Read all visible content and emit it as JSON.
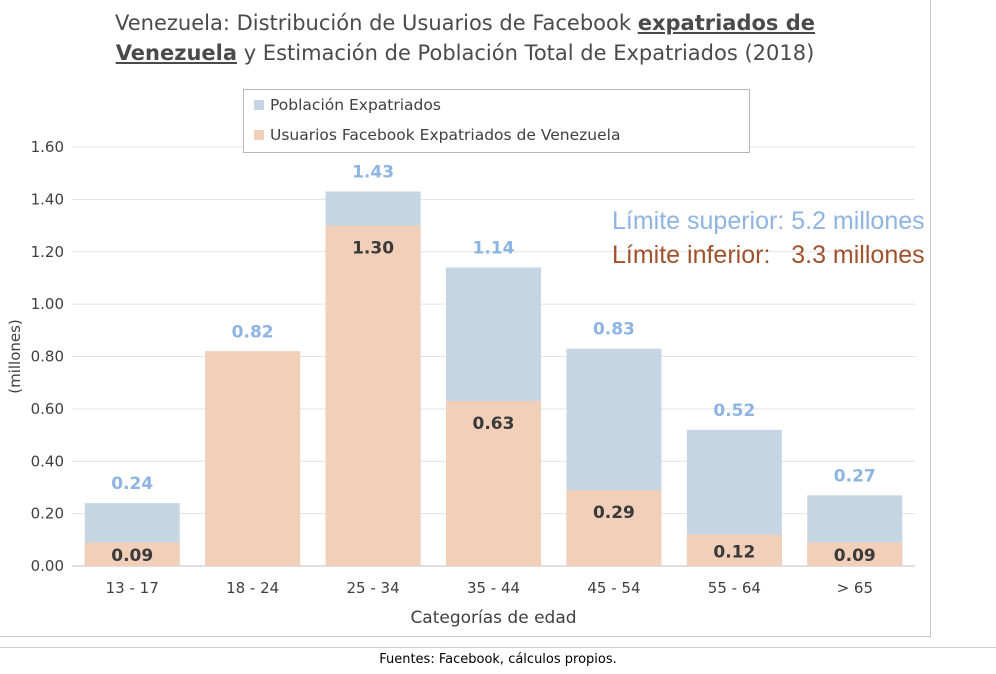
{
  "chart_data": {
    "type": "bar",
    "stacked": false,
    "overlapping": true,
    "title_parts": [
      "Venezuela: Distribución de Usuarios de Facebook ",
      "expatriados de",
      "Venezuela",
      " y Estimación de Población Total de Expatriados (2018)"
    ],
    "categories": [
      "13 - 17",
      "18 - 24",
      "25 - 34",
      "35 - 44",
      "45 - 54",
      "55 - 64",
      "> 65"
    ],
    "series": [
      {
        "name": "Población Expatriados",
        "values": [
          0.24,
          0.82,
          1.43,
          1.14,
          0.83,
          0.52,
          0.27
        ],
        "labels": [
          "0.24",
          "0.82",
          "1.43",
          "1.14",
          "0.83",
          "0.52",
          "0.27"
        ],
        "color": "#c5d5e4",
        "label_color": "#8db4e2"
      },
      {
        "name": "Usuarios Facebook Expatriados de Venezuela",
        "values": [
          0.09,
          0.82,
          1.3,
          0.63,
          0.29,
          0.12,
          0.09
        ],
        "labels": [
          "0.09",
          "",
          "1.30",
          "0.63",
          "0.29",
          "0.12",
          "0.09"
        ],
        "color": "#f2cfb9",
        "label_color": "#3a3a3a"
      }
    ],
    "xlabel": "Categorías de edad",
    "ylabel": "(millones)",
    "ylim": [
      0,
      1.6
    ],
    "yticks": [
      "0.00",
      "0.20",
      "0.40",
      "0.60",
      "0.80",
      "1.00",
      "1.20",
      "1.40",
      "1.60"
    ],
    "grid": true,
    "legend_position": "top-center"
  },
  "annotations": {
    "upper": "Límite superior: 5.2 millones",
    "lower": "Límite inferior:   3.3 millones",
    "upper_color": "#8db4e2",
    "lower_color": "#a0522d"
  },
  "footer": "Fuentes: Facebook, cálculos propios."
}
